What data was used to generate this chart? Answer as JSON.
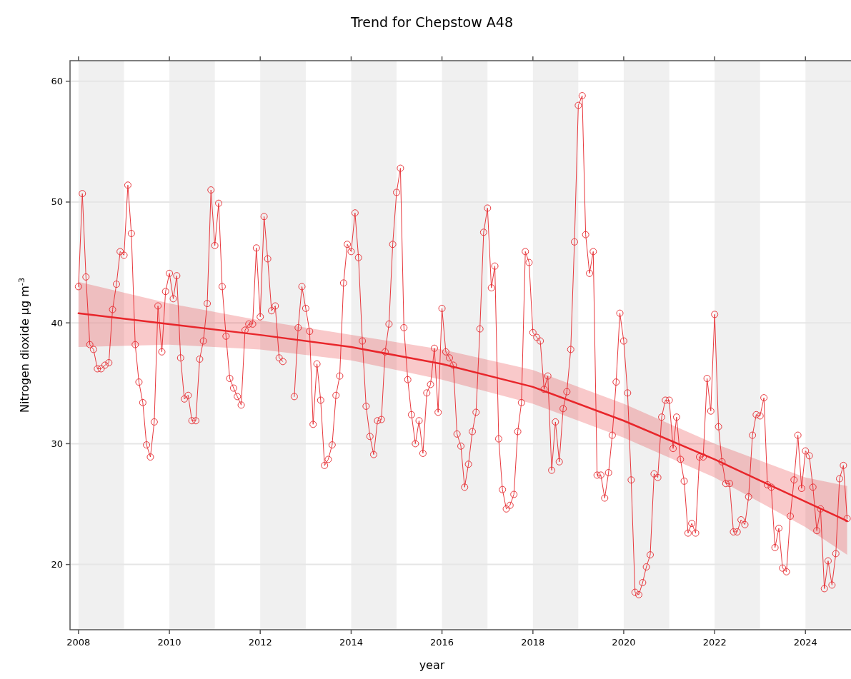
{
  "chart_data": {
    "type": "line",
    "title": "Trend for Chepstow A48",
    "xlabel": "year",
    "ylabel": "Nitrogen dioxide µg m$^{-3}$",
    "x": [
      "2008-01",
      "2008-02",
      "2008-03",
      "2008-04",
      "2008-05",
      "2008-06",
      "2008-07",
      "2008-08",
      "2008-09",
      "2008-10",
      "2008-11",
      "2008-12",
      "2009-01",
      "2009-02",
      "2009-03",
      "2009-04",
      "2009-05",
      "2009-06",
      "2009-07",
      "2009-08",
      "2009-09",
      "2009-10",
      "2009-11",
      "2009-12",
      "2010-01",
      "2010-02",
      "2010-03",
      "2010-04",
      "2010-05",
      "2010-06",
      "2010-07",
      "2010-08",
      "2010-09",
      "2010-10",
      "2010-11",
      "2010-12",
      "2011-01",
      "2011-02",
      "2011-03",
      "2011-04",
      "2011-05",
      "2011-06",
      "2011-07",
      "2011-08",
      "2011-09",
      "2011-10",
      "2011-11",
      "2011-12",
      "2012-01",
      "2012-02",
      "2012-03",
      "2012-04",
      "2012-05",
      "2012-06",
      "2012-07",
      "2012-08",
      "2012-09",
      "2012-10",
      "2012-11",
      "2012-12",
      "2013-01",
      "2013-02",
      "2013-03",
      "2013-04",
      "2013-05",
      "2013-06",
      "2013-07",
      "2013-08",
      "2013-09",
      "2013-10",
      "2013-11",
      "2013-12",
      "2014-01",
      "2014-02",
      "2014-03",
      "2014-04",
      "2014-05",
      "2014-06",
      "2014-07",
      "2014-08",
      "2014-09",
      "2014-10",
      "2014-11",
      "2014-12",
      "2015-01",
      "2015-02",
      "2015-03",
      "2015-04",
      "2015-05",
      "2015-06",
      "2015-07",
      "2015-08",
      "2015-09",
      "2015-10",
      "2015-11",
      "2015-12",
      "2016-01",
      "2016-02",
      "2016-03",
      "2016-04",
      "2016-05",
      "2016-06",
      "2016-07",
      "2016-08",
      "2016-09",
      "2016-10",
      "2016-11",
      "2016-12",
      "2017-01",
      "2017-02",
      "2017-03",
      "2017-04",
      "2017-05",
      "2017-06",
      "2017-07",
      "2017-08",
      "2017-09",
      "2017-10",
      "2017-11",
      "2017-12",
      "2018-01",
      "2018-02",
      "2018-03",
      "2018-04",
      "2018-05",
      "2018-06",
      "2018-07",
      "2018-08",
      "2018-09",
      "2018-10",
      "2018-11",
      "2018-12",
      "2019-01",
      "2019-02",
      "2019-03",
      "2019-04",
      "2019-05",
      "2019-06",
      "2019-07",
      "2019-08",
      "2019-09",
      "2019-10",
      "2019-11",
      "2019-12",
      "2020-01",
      "2020-02",
      "2020-03",
      "2020-04",
      "2020-05",
      "2020-06",
      "2020-07",
      "2020-08",
      "2020-09",
      "2020-10",
      "2020-11",
      "2020-12",
      "2021-01",
      "2021-02",
      "2021-03",
      "2021-04",
      "2021-05",
      "2021-06",
      "2021-07",
      "2021-08",
      "2021-09",
      "2021-10",
      "2021-11",
      "2021-12",
      "2022-01",
      "2022-02",
      "2022-03",
      "2022-04",
      "2022-05",
      "2022-06",
      "2022-07",
      "2022-08",
      "2022-09",
      "2022-10",
      "2022-11",
      "2022-12",
      "2023-01",
      "2023-02",
      "2023-03",
      "2023-04",
      "2023-05",
      "2023-06",
      "2023-07",
      "2023-08",
      "2023-09",
      "2023-10",
      "2023-11",
      "2023-12",
      "2024-01",
      "2024-02",
      "2024-03",
      "2024-04",
      "2024-05",
      "2024-06",
      "2024-07",
      "2024-08",
      "2024-09",
      "2024-10",
      "2024-11",
      "2024-12"
    ],
    "series": [
      {
        "color": "#e8383d",
        "marker": "circle",
        "values": [
          43.0,
          50.7,
          43.8,
          38.2,
          37.8,
          36.2,
          36.2,
          36.5,
          36.7,
          41.1,
          43.2,
          45.9,
          45.6,
          51.4,
          47.4,
          38.2,
          35.1,
          33.4,
          29.9,
          28.9,
          31.8,
          41.4,
          37.6,
          42.6,
          44.1,
          42.0,
          43.9,
          37.1,
          33.7,
          34.0,
          31.9,
          31.9,
          37.0,
          38.5,
          41.6,
          51.0,
          46.4,
          49.9,
          43.0,
          38.9,
          35.4,
          34.6,
          33.9,
          33.2,
          39.4,
          39.9,
          39.9,
          46.2,
          40.5,
          48.8,
          45.3,
          41.0,
          41.4,
          37.1,
          36.8,
          null,
          null,
          33.9,
          39.6,
          43.0,
          41.2,
          39.3,
          31.6,
          36.6,
          33.6,
          28.2,
          28.7,
          29.9,
          34.0,
          35.6,
          43.3,
          46.5,
          45.9,
          49.1,
          45.4,
          38.5,
          33.1,
          30.6,
          29.1,
          31.9,
          32.0,
          37.6,
          39.9,
          46.5,
          50.8,
          52.8,
          39.6,
          35.3,
          32.4,
          30.0,
          31.9,
          29.2,
          34.2,
          34.9,
          37.9,
          32.6,
          41.2,
          37.6,
          37.1,
          36.5,
          30.8,
          29.8,
          26.4,
          28.3,
          31.0,
          32.6,
          39.5,
          47.5,
          49.5,
          42.9,
          44.7,
          30.4,
          26.2,
          24.6,
          24.9,
          25.8,
          31.0,
          33.4,
          45.9,
          45.0,
          39.2,
          38.8,
          38.5,
          34.5,
          35.6,
          27.8,
          31.8,
          28.5,
          32.9,
          34.3,
          37.8,
          46.7,
          58.0,
          58.8,
          47.3,
          44.1,
          45.9,
          27.4,
          27.4,
          25.5,
          27.6,
          30.7,
          35.1,
          40.8,
          38.5,
          34.2,
          27.0,
          17.7,
          17.5,
          18.5,
          19.8,
          20.8,
          27.5,
          27.2,
          32.2,
          33.6,
          33.6,
          29.6,
          32.2,
          28.7,
          26.9,
          22.6,
          23.4,
          22.6,
          28.9,
          28.9,
          35.4,
          32.7,
          40.7,
          31.4,
          28.5,
          26.7,
          26.7,
          22.7,
          22.7,
          23.7,
          23.3,
          25.6,
          30.7,
          32.4,
          32.3,
          33.8,
          26.6,
          26.4,
          21.4,
          23.0,
          19.7,
          19.4,
          24.0,
          27.0,
          30.7,
          26.3,
          29.4,
          29.0,
          26.4,
          22.8,
          24.6,
          18.0,
          20.3,
          18.3,
          20.9,
          27.1,
          28.2,
          23.8
        ]
      },
      {
        "color": "#e8262b",
        "marker": "none",
        "x": [
          "2008-01",
          "2010-01",
          "2012-01",
          "2014-01",
          "2016-01",
          "2018-01",
          "2020-01",
          "2022-01",
          "2024-01",
          "2024-12"
        ],
        "values": [
          40.8,
          39.9,
          39.0,
          38.0,
          36.6,
          34.7,
          31.9,
          28.7,
          25.2,
          23.6
        ],
        "lower": [
          38.0,
          38.2,
          37.8,
          36.9,
          35.3,
          33.3,
          30.5,
          27.2,
          23.1,
          20.8
        ],
        "upper": [
          43.4,
          41.6,
          40.2,
          39.0,
          37.8,
          36.1,
          33.3,
          30.0,
          27.2,
          26.5
        ]
      }
    ],
    "xlim": [
      "2007-10-25",
      "2025-01-01"
    ],
    "xticks": [
      "2008",
      "2010",
      "2012",
      "2014",
      "2016",
      "2018",
      "2020",
      "2022",
      "2024"
    ],
    "ylim": [
      14.6,
      61.7
    ],
    "yticks": [
      20,
      30,
      40,
      50,
      60
    ],
    "grid": "y",
    "bands": [
      {
        "axis": "x",
        "from": "2008-01-01",
        "to": "2009-01-01",
        "color": "#f0f0f0"
      },
      {
        "axis": "x",
        "from": "2010-01-01",
        "to": "2011-01-01",
        "color": "#f0f0f0"
      },
      {
        "axis": "x",
        "from": "2012-01-01",
        "to": "2013-01-01",
        "color": "#f0f0f0"
      },
      {
        "axis": "x",
        "from": "2014-01-01",
        "to": "2015-01-01",
        "color": "#f0f0f0"
      },
      {
        "axis": "x",
        "from": "2016-01-01",
        "to": "2017-01-01",
        "color": "#f0f0f0"
      },
      {
        "axis": "x",
        "from": "2018-01-01",
        "to": "2019-01-01",
        "color": "#f0f0f0"
      },
      {
        "axis": "x",
        "from": "2020-01-01",
        "to": "2021-01-01",
        "color": "#f0f0f0"
      },
      {
        "axis": "x",
        "from": "2022-01-01",
        "to": "2023-01-01",
        "color": "#f0f0f0"
      },
      {
        "axis": "x",
        "from": "2024-01-01",
        "to": "2025-01-01",
        "color": "#f0f0f0"
      }
    ]
  }
}
